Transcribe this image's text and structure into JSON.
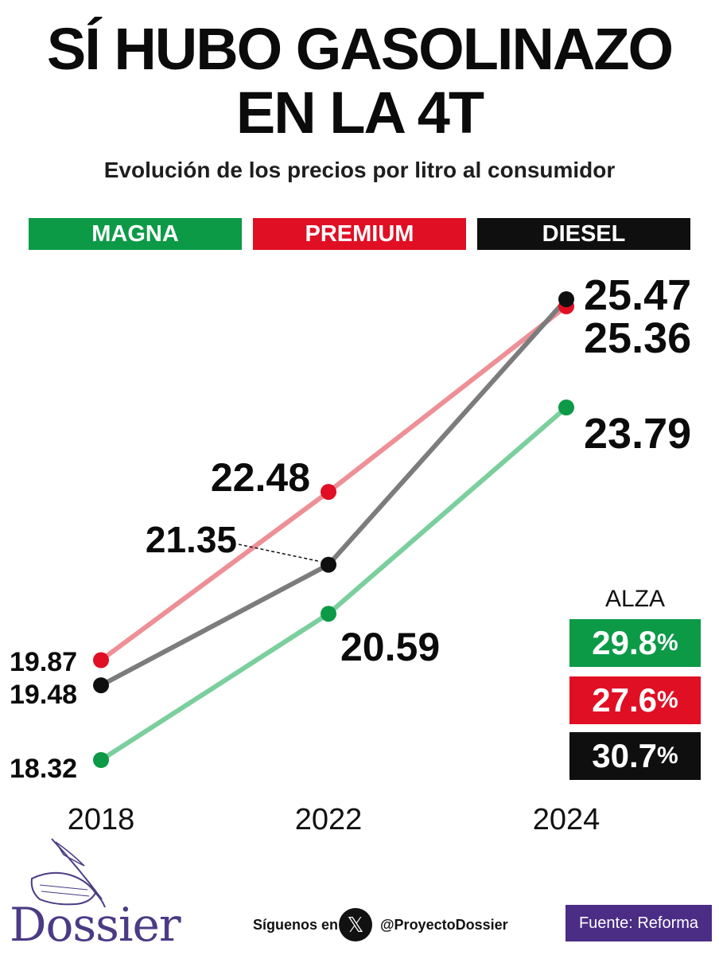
{
  "title_line1": "SÍ HUBO GASOLINAZO",
  "title_line2": "EN LA 4T",
  "subtitle": "Evolución de los precios por litro al consumidor",
  "colors": {
    "magna": "#0c9a47",
    "premium": "#e00f24",
    "diesel": "#0f0f0f",
    "magna_line": "#7bcf9d",
    "premium_line": "#ee8f96",
    "diesel_line": "#7c7c7c",
    "source_bg": "#4b2d86",
    "brand": "#4b3a85"
  },
  "chart_data": {
    "type": "line",
    "x": [
      "2018",
      "2022",
      "2024"
    ],
    "series": [
      {
        "name": "MAGNA",
        "values": [
          18.32,
          20.59,
          23.79
        ],
        "labels": [
          "18.32",
          "20.59",
          "23.79"
        ],
        "color_key": "magna"
      },
      {
        "name": "PREMIUM",
        "values": [
          19.87,
          22.48,
          25.36
        ],
        "labels": [
          "19.87",
          "22.48",
          "25.36"
        ],
        "color_key": "premium"
      },
      {
        "name": "DIESEL",
        "values": [
          19.48,
          21.35,
          25.47
        ],
        "labels": [
          "19.48",
          "21.35",
          "25.47"
        ],
        "color_key": "diesel"
      }
    ],
    "ylim": [
      18.32,
      25.47
    ],
    "grid": false,
    "legend_position": "top"
  },
  "alza": {
    "label": "ALZA",
    "items": [
      {
        "value": "29.8",
        "unit": "%",
        "color_key": "magna"
      },
      {
        "value": "27.6",
        "unit": "%",
        "color_key": "premium"
      },
      {
        "value": "30.7",
        "unit": "%",
        "color_key": "diesel"
      }
    ]
  },
  "footer": {
    "brand": "Dossier",
    "follow_text": "Síguenos en",
    "x_icon": "x-logo-icon",
    "x_glyph": "𝕏",
    "handle": "@ProyectoDossier",
    "source": "Fuente: Reforma"
  }
}
